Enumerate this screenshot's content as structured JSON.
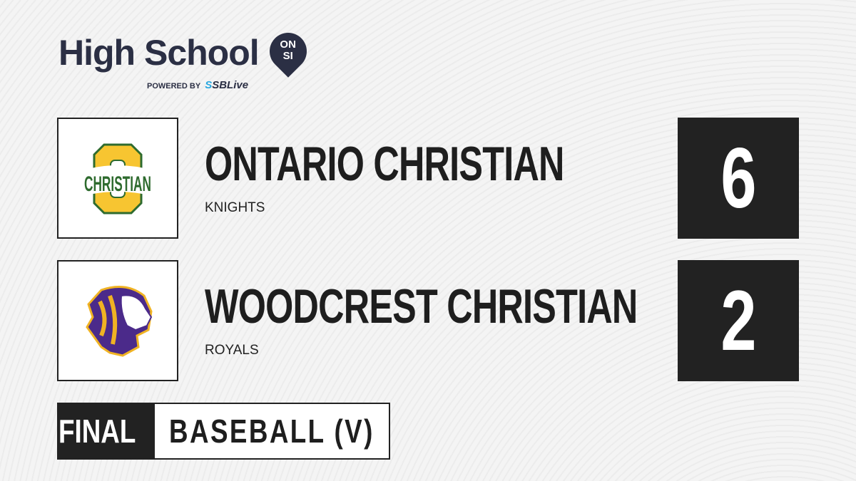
{
  "brand": {
    "title": "High School",
    "badge_top": "ON",
    "badge_bottom": "SI",
    "powered_by": "POWERED BY",
    "partner_prefix": "S",
    "partner": "SBLive"
  },
  "teams": [
    {
      "name": "ONTARIO CHRISTIAN",
      "mascot": "KNIGHTS",
      "score": "6",
      "logo_text": "CHRISTIAN",
      "colors": {
        "primary": "#2e6b2e",
        "secondary": "#f7c531"
      }
    },
    {
      "name": "WOODCREST CHRISTIAN",
      "mascot": "ROYALS",
      "score": "2",
      "colors": {
        "primary": "#4b2a8a",
        "secondary": "#f0b323"
      }
    }
  ],
  "status": {
    "label": "FINAL",
    "sport": "BASEBALL (V)"
  }
}
